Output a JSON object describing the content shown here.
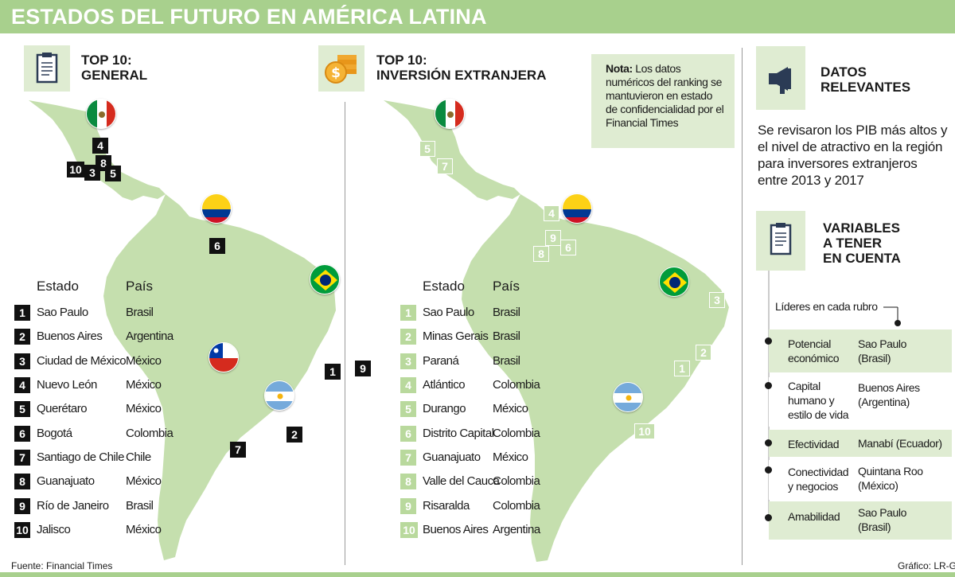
{
  "title": "ESTADOS DEL FUTURO EN AMÉRICA LATINA",
  "sections": {
    "general": {
      "heading_line1": "TOP 10:",
      "heading_line2": "GENERAL",
      "icon": "clipboard-icon"
    },
    "investment": {
      "heading_line1": "TOP 10:",
      "heading_line2": "INVERSIÓN EXTRANJERA",
      "icon": "coins-icon"
    },
    "relevant": {
      "heading_line1": "DATOS",
      "heading_line2": "RELEVANTES",
      "icon": "megaphone-icon"
    },
    "variables": {
      "heading_line1": "VARIABLES",
      "heading_line2": "A TENER",
      "heading_line3": "EN CUENTA",
      "icon": "clipboard-icon"
    }
  },
  "note": {
    "bold": "Nota:",
    "text": " Los datos numéricos del ranking se mantuvieron en estado de confidencialidad por el Financial Times"
  },
  "table_headers": {
    "state": "Estado",
    "country": "País"
  },
  "general_ranking": [
    {
      "rank": "1",
      "state": "Sao Paulo",
      "country": "Brasil"
    },
    {
      "rank": "2",
      "state": "Buenos Aires",
      "country": "Argentina"
    },
    {
      "rank": "3",
      "state": "Ciudad de México",
      "country": "México"
    },
    {
      "rank": "4",
      "state": "Nuevo León",
      "country": "México"
    },
    {
      "rank": "5",
      "state": "Querétaro",
      "country": "México"
    },
    {
      "rank": "6",
      "state": "Bogotá",
      "country": "Colombia"
    },
    {
      "rank": "7",
      "state": "Santiago de Chile",
      "country": "Chile"
    },
    {
      "rank": "8",
      "state": "Guanajuato",
      "country": "México"
    },
    {
      "rank": "9",
      "state": "Río de Janeiro",
      "country": "Brasil"
    },
    {
      "rank": "10",
      "state": "Jalisco",
      "country": "México"
    }
  ],
  "investment_ranking": [
    {
      "rank": "1",
      "state": "Sao Paulo",
      "country": "Brasil"
    },
    {
      "rank": "2",
      "state": "Minas Gerais",
      "country": "Brasil"
    },
    {
      "rank": "3",
      "state": "Paraná",
      "country": "Brasil"
    },
    {
      "rank": "4",
      "state": "Atlántico",
      "country": "Colombia"
    },
    {
      "rank": "5",
      "state": "Durango",
      "country": "México"
    },
    {
      "rank": "6",
      "state": "Distrito Capital",
      "country": "Colombia"
    },
    {
      "rank": "7",
      "state": "Guanajuato",
      "country": "México"
    },
    {
      "rank": "8",
      "state": "Valle del Cauca",
      "country": "Colombia"
    },
    {
      "rank": "9",
      "state": "Risaralda",
      "country": "Colombia"
    },
    {
      "rank": "10",
      "state": "Buenos Aires",
      "country": "Argentina"
    }
  ],
  "relevant_text": "Se revisaron los PIB más altos y el nivel de atractivo en la región para inversores extranjeros entre 2013 y 2017",
  "leaders_title": "Líderes en cada rubro",
  "variables": [
    {
      "name_lines": [
        "Potencial",
        "económico"
      ],
      "leader_lines": [
        "Sao Paulo",
        "(Brasil)"
      ]
    },
    {
      "name_lines": [
        "Capital",
        "humano y",
        "estilo de vida"
      ],
      "leader_lines": [
        "Buenos Aires",
        "(Argentina)"
      ]
    },
    {
      "name_lines": [
        "Efectividad"
      ],
      "leader_lines": [
        "Manabí (Ecuador)"
      ]
    },
    {
      "name_lines": [
        "Conectividad",
        "y negocios"
      ],
      "leader_lines": [
        "Quintana Roo",
        "(México)"
      ]
    },
    {
      "name_lines": [
        "Amabilidad"
      ],
      "leader_lines": [
        "Sao Paulo",
        "(Brasil)"
      ]
    }
  ],
  "flags": [
    "mexico-flag-icon",
    "colombia-flag-icon",
    "brazil-flag-icon",
    "chile-flag-icon",
    "argentina-flag-icon"
  ],
  "source": "Fuente: Financial Times",
  "credit": "Gráfico: LR-GR",
  "colors": {
    "title_bar": "#a8d08d",
    "map_green": "#c5dfae",
    "light_bg": "#dfecd2",
    "dark_badge": "#111111"
  }
}
